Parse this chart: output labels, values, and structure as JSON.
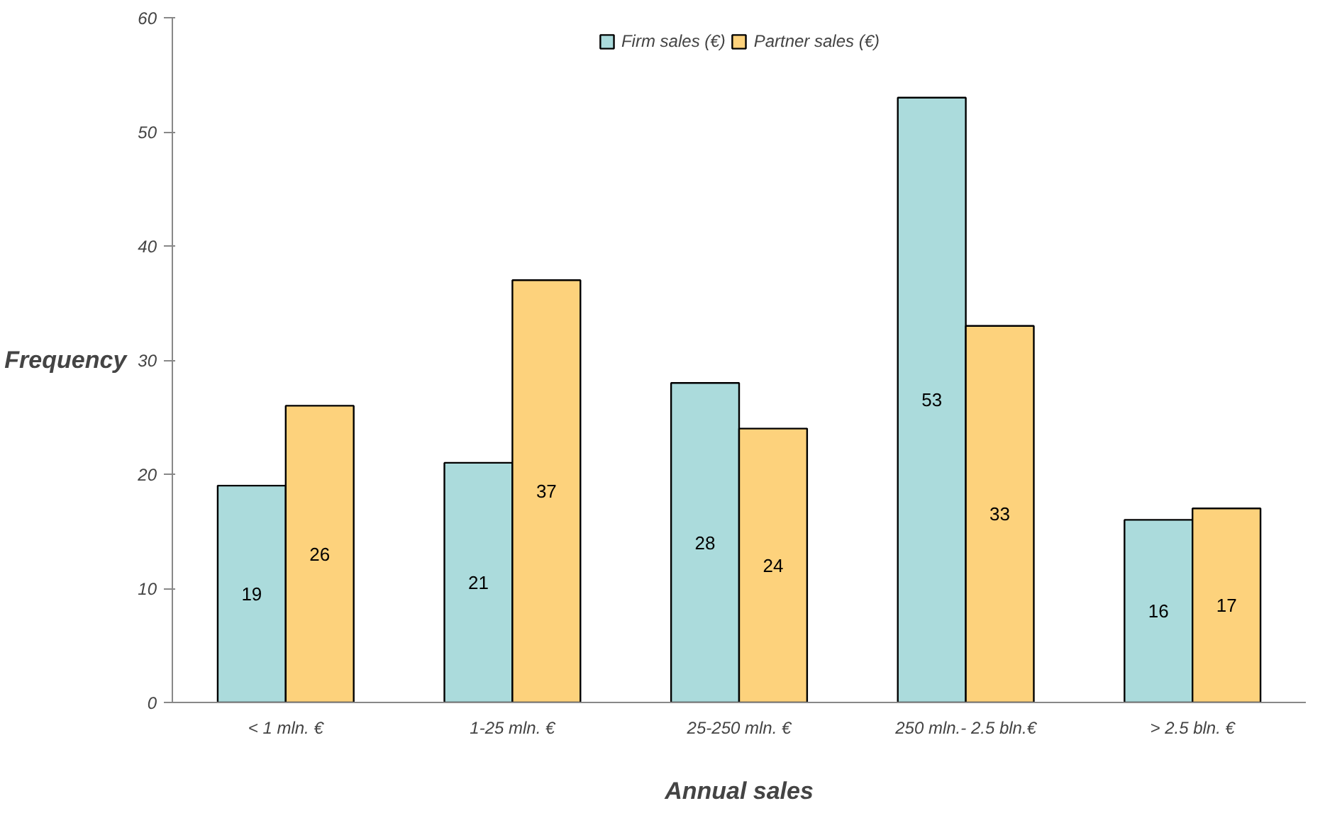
{
  "chart_data": {
    "type": "bar",
    "xlabel": "Annual sales",
    "ylabel": "Frequency",
    "categories": [
      "< 1 mln. €",
      "1-25 mln. €",
      "25-250 mln. €",
      "250 mln.- 2.5 bln.€",
      "> 2.5 bln. €"
    ],
    "series": [
      {
        "name": "Firm sales (€)",
        "color": "#abdbdc",
        "values": [
          19,
          21,
          28,
          53,
          16
        ]
      },
      {
        "name": "Partner sales (€)",
        "color": "#fdd27c",
        "values": [
          26,
          37,
          24,
          33,
          17
        ]
      }
    ],
    "ylim": [
      0,
      60
    ],
    "yticks": [
      0,
      10,
      20,
      30,
      40,
      50,
      60
    ],
    "grid": false,
    "legend": "top",
    "data_labels": true
  }
}
